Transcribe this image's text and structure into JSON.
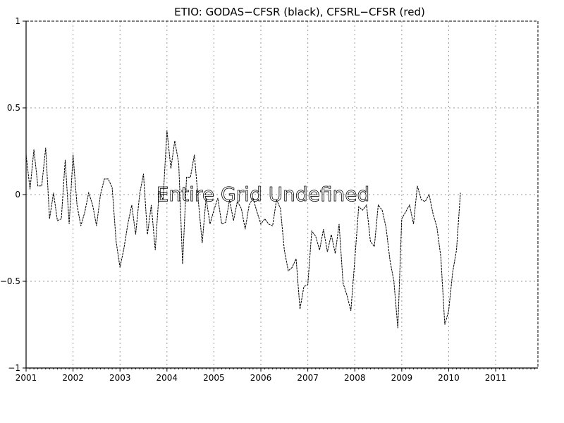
{
  "chart_data": {
    "type": "line",
    "title": "ETIO: GODAS−CFSR (black), CFSRL−CFSR (red)",
    "overlay_text": "Entire Grid Undefined",
    "xlabel": "",
    "ylabel": "",
    "xlim": [
      2001.0,
      2011.9
    ],
    "ylim": [
      -1,
      1
    ],
    "x_ticks": [
      "2001",
      "2002",
      "2003",
      "2004",
      "2005",
      "2006",
      "2007",
      "2008",
      "2009",
      "2010",
      "2011"
    ],
    "y_ticks": [
      1,
      0.5,
      0,
      -0.5,
      -1
    ],
    "y_tick_labels": [
      "1",
      "0.5",
      "0",
      "−0.5",
      "−1"
    ],
    "grid": true,
    "series": [
      {
        "color": "#000000",
        "x_start": 2001.0,
        "x_step": 0.08333,
        "values": [
          0.23,
          0.03,
          0.26,
          0.05,
          0.05,
          0.27,
          -0.14,
          0.01,
          -0.15,
          -0.14,
          0.2,
          -0.17,
          0.23,
          -0.06,
          -0.18,
          -0.1,
          0.01,
          -0.06,
          -0.18,
          0.0,
          0.09,
          0.09,
          0.04,
          -0.27,
          -0.42,
          -0.31,
          -0.17,
          -0.06,
          -0.23,
          0.0,
          0.12,
          -0.23,
          -0.06,
          -0.32,
          0.02,
          -0.03,
          0.37,
          0.15,
          0.31,
          0.18,
          -0.4,
          0.1,
          0.1,
          0.23,
          -0.03,
          -0.28,
          -0.02,
          -0.17,
          -0.09,
          -0.02,
          -0.17,
          -0.16,
          -0.03,
          -0.15,
          -0.04,
          -0.08,
          -0.2,
          -0.06,
          -0.02,
          -0.1,
          -0.17,
          -0.14,
          -0.17,
          -0.18,
          -0.03,
          -0.08,
          -0.32,
          -0.44,
          -0.42,
          -0.37,
          -0.66,
          -0.53,
          -0.52,
          -0.21,
          -0.24,
          -0.32,
          -0.2,
          -0.33,
          -0.23,
          -0.34,
          -0.17,
          -0.51,
          -0.58,
          -0.67,
          -0.38,
          -0.07,
          -0.09,
          -0.06,
          -0.27,
          -0.3,
          -0.06,
          -0.09,
          -0.19,
          -0.38,
          -0.5,
          -0.77,
          -0.14,
          -0.1,
          -0.06,
          -0.17,
          0.05,
          -0.03,
          -0.04,
          0.0,
          -0.11,
          -0.19,
          -0.36,
          -0.75,
          -0.67,
          -0.45,
          -0.32,
          0.01
        ]
      }
    ]
  }
}
